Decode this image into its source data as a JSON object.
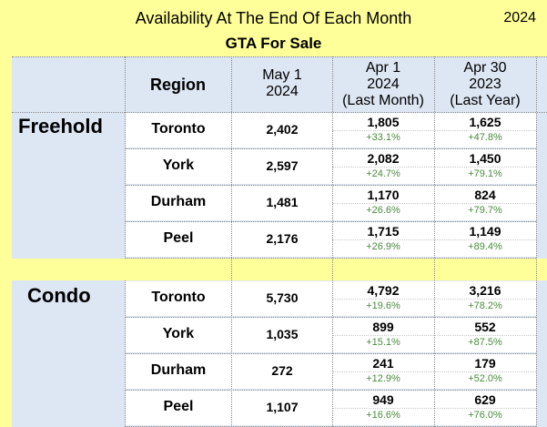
{
  "header": {
    "title": "Availability At The End Of Each Month",
    "year": "2024",
    "subtitle": "GTA For Sale"
  },
  "columns": {
    "region": "Region",
    "col1": [
      "May 1",
      "2024"
    ],
    "col2": [
      "Apr 1",
      "2024",
      "(Last Month)"
    ],
    "col3": [
      "Apr 30",
      "2023",
      "(Last Year)"
    ]
  },
  "sections": [
    {
      "name": "Freehold",
      "rows": [
        {
          "region": "Toronto",
          "may": "2,402",
          "apr": "1,805",
          "apr_chg": "+33.1%",
          "yr": "1,625",
          "yr_chg": "+47.8%"
        },
        {
          "region": "York",
          "may": "2,597",
          "apr": "2,082",
          "apr_chg": "+24.7%",
          "yr": "1,450",
          "yr_chg": "+79.1%"
        },
        {
          "region": "Durham",
          "may": "1,481",
          "apr": "1,170",
          "apr_chg": "+26.6%",
          "yr": "824",
          "yr_chg": "+79.7%"
        },
        {
          "region": "Peel",
          "may": "2,176",
          "apr": "1,715",
          "apr_chg": "+26.9%",
          "yr": "1,149",
          "yr_chg": "+89.4%"
        }
      ]
    },
    {
      "name": "Condo",
      "rows": [
        {
          "region": "Toronto",
          "may": "5,730",
          "apr": "4,792",
          "apr_chg": "+19.6%",
          "yr": "3,216",
          "yr_chg": "+78.2%"
        },
        {
          "region": "York",
          "may": "1,035",
          "apr": "899",
          "apr_chg": "+15.1%",
          "yr": "552",
          "yr_chg": "+87.5%"
        },
        {
          "region": "Durham",
          "may": "272",
          "apr": "241",
          "apr_chg": "+12.9%",
          "yr": "179",
          "yr_chg": "+52.0%"
        },
        {
          "region": "Peel",
          "may": "1,107",
          "apr": "949",
          "apr_chg": "+16.6%",
          "yr": "629",
          "yr_chg": "+76.0%"
        }
      ]
    }
  ],
  "colors": {
    "title_bg": "#ffff99",
    "header_bg": "#dde6f3",
    "change_text": "#4a8a3c"
  }
}
